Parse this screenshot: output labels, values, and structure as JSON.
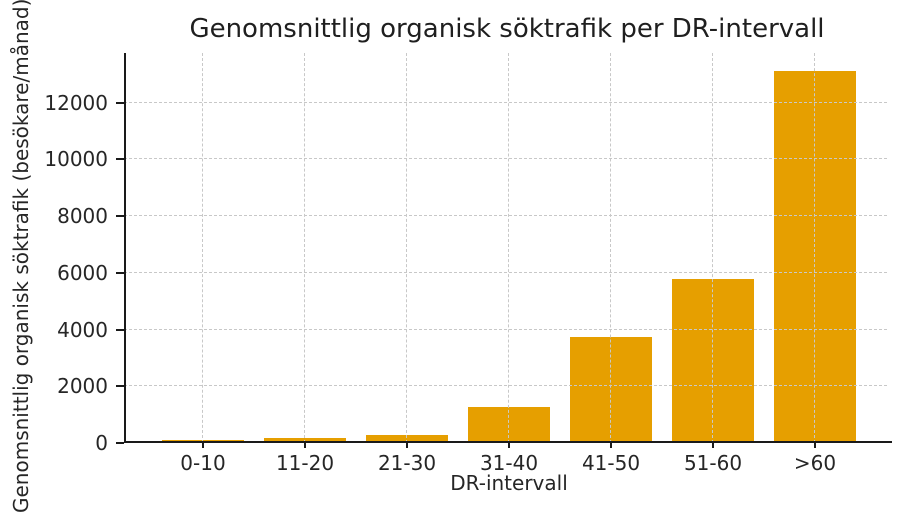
{
  "chart_data": {
    "type": "bar",
    "title": "Genomsnittlig organisk söktrafik per DR-intervall",
    "xlabel": "DR-intervall",
    "ylabel": "Genomsnittlig organisk söktrafik (besökare/månad)",
    "categories": [
      "0-10",
      "11-20",
      "21-30",
      "31-40",
      "41-50",
      "51-60",
      ">60"
    ],
    "values": [
      90,
      180,
      300,
      1280,
      3750,
      5800,
      13100
    ],
    "yticks": [
      0,
      2000,
      4000,
      6000,
      8000,
      10000,
      12000
    ],
    "ylim": [
      0,
      13750
    ],
    "grid": true,
    "grid_style": "dashed",
    "legend": "none",
    "colors": {
      "bar": "#E69F00",
      "grid": "#c8c8c8",
      "spine": "#1a1a1a",
      "text": "#262626"
    }
  }
}
